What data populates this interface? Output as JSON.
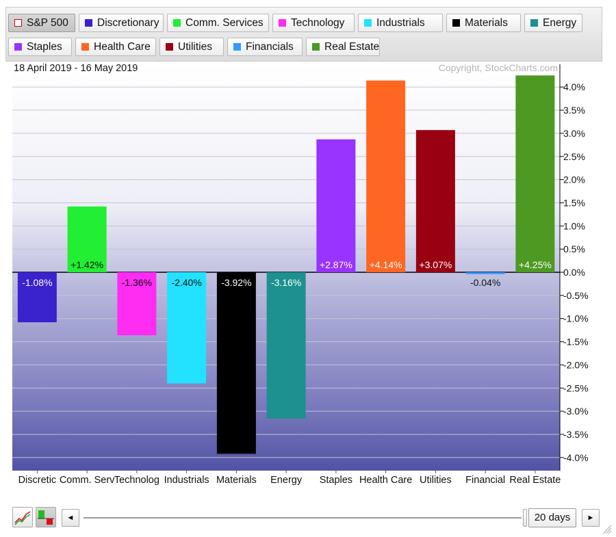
{
  "legend": [
    {
      "label": "S&P 500",
      "color": "#cc0000",
      "hollow": true,
      "active": true
    },
    {
      "label": "Discretionary",
      "color": "#3a22cc"
    },
    {
      "label": "Comm. Services",
      "color": "#22ee33"
    },
    {
      "label": "Technology",
      "color": "#ff2cf2"
    },
    {
      "label": "Industrials",
      "color": "#22e2ff"
    },
    {
      "label": "Materials",
      "color": "#000000"
    },
    {
      "label": "Energy",
      "color": "#1d9090"
    },
    {
      "label": "Staples",
      "color": "#9933ff"
    },
    {
      "label": "Health Care",
      "color": "#ff6622"
    },
    {
      "label": "Utilities",
      "color": "#990011"
    },
    {
      "label": "Financials",
      "color": "#3399ff"
    },
    {
      "label": "Real Estate",
      "color": "#4d9922"
    }
  ],
  "chart_data": {
    "type": "bar",
    "date_range": "18 April 2019 - 16 May 2019",
    "copyright": "Copyright, StockCharts.com",
    "categories": [
      "Discretic",
      "Comm. Serv",
      "Technolog",
      "Industrials",
      "Materials",
      "Energy",
      "Staples",
      "Health Care",
      "Utilities",
      "Financial",
      "Real Estate"
    ],
    "values": [
      -1.08,
      1.42,
      -1.36,
      -2.4,
      -3.92,
      -3.16,
      2.87,
      4.14,
      3.07,
      -0.04,
      4.25
    ],
    "value_labels": [
      "-1.08%",
      "+1.42%",
      "-1.36%",
      "-2.40%",
      "-3.92%",
      "-3.16%",
      "+2.87%",
      "+4.14%",
      "+3.07%",
      "-0.04%",
      "+4.25%"
    ],
    "colors": [
      "#3a22cc",
      "#22ee33",
      "#ff2cf2",
      "#22e2ff",
      "#000000",
      "#1d9090",
      "#9933ff",
      "#ff6622",
      "#990011",
      "#3399ff",
      "#4d9922"
    ],
    "label_colors": [
      "#ffffff",
      "#111111",
      "#111111",
      "#111111",
      "#ffffff",
      "#ffffff",
      "#ffffff",
      "#ffffff",
      "#ffffff",
      "#111111",
      "#ffffff"
    ],
    "ylim": [
      -4.0,
      4.0
    ],
    "yticks": [
      4.0,
      3.5,
      3.0,
      2.5,
      2.0,
      1.5,
      1.0,
      0.5,
      0.0,
      -0.5,
      -1.0,
      -1.5,
      -2.0,
      -2.5,
      -3.0,
      -3.5,
      -4.0
    ],
    "ytick_labels": [
      "4.0%",
      "3.5%",
      "3.0%",
      "2.5%",
      "2.0%",
      "1.5%",
      "1.0%",
      "0.5%",
      "0.0%",
      "-0.5%",
      "-1.0%",
      "-1.5%",
      "-2.0%",
      "-2.5%",
      "-3.0%",
      "-3.5%",
      "-4.0%"
    ],
    "grid": true,
    "y_axis_position": "right"
  },
  "controls": {
    "days_label": "20 days",
    "prev_symbol": "◄",
    "next_symbol": "►"
  }
}
